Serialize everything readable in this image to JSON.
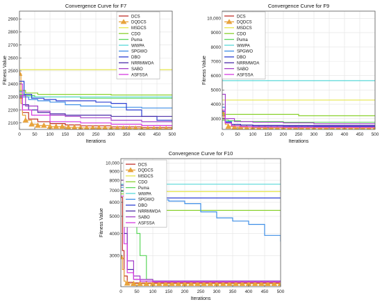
{
  "series_styles": [
    {
      "name": "DCS",
      "color": "#c0302a"
    },
    {
      "name": "DQDCS",
      "color": "#e8a33c",
      "marker": "triangle"
    },
    {
      "name": "MSDCS",
      "color": "#e6e64a"
    },
    {
      "name": "CDO",
      "color": "#8ad12e"
    },
    {
      "name": "Puma",
      "color": "#5ad65a"
    },
    {
      "name": "WWPA",
      "color": "#58d8d8"
    },
    {
      "name": "SPGWO",
      "color": "#3e8ee6"
    },
    {
      "name": "DBO",
      "color": "#2c3fd2"
    },
    {
      "name": "NRRMWOA",
      "color": "#4a2ca8"
    },
    {
      "name": "SABO",
      "color": "#a23cc8"
    },
    {
      "name": "ASFSSA",
      "color": "#d63ce0"
    }
  ],
  "chart_data": [
    {
      "type": "line",
      "title": "Convergence Curve for F7",
      "xlabel": "Iterations",
      "ylabel": "Fitness Value",
      "xlim": [
        0,
        500
      ],
      "ylim": [
        2050,
        2960
      ],
      "xticks": [
        0,
        50,
        100,
        150,
        200,
        250,
        300,
        350,
        400,
        450,
        500
      ],
      "yticks": [
        2100,
        2200,
        2300,
        2400,
        2500,
        2600,
        2700,
        2800,
        2900
      ],
      "ytick_labels": [
        "2100",
        "2200",
        "2300",
        "2400",
        "2500",
        "2600",
        "2700",
        "2800",
        "2900"
      ],
      "legend": "top-right",
      "grid": true,
      "series": [
        {
          "name": "DCS",
          "x": [
            0,
            10,
            30,
            60,
            100,
            150,
            200,
            300,
            400,
            500
          ],
          "y": [
            2290,
            2180,
            2130,
            2110,
            2095,
            2085,
            2078,
            2070,
            2065,
            2062
          ]
        },
        {
          "name": "DQDCS",
          "x": [
            0,
            5,
            10,
            20,
            40,
            60,
            100,
            150,
            200,
            300,
            400,
            500
          ],
          "y": [
            2480,
            2250,
            2160,
            2120,
            2090,
            2080,
            2072,
            2066,
            2062,
            2058,
            2055,
            2053
          ]
        },
        {
          "name": "MSDCS",
          "x": [
            0,
            500
          ],
          "y": [
            2510,
            2510
          ]
        },
        {
          "name": "CDO",
          "x": [
            0,
            20,
            60,
            100,
            150,
            200,
            300,
            500
          ],
          "y": [
            2350,
            2330,
            2320,
            2320,
            2320,
            2320,
            2315,
            2315
          ]
        },
        {
          "name": "Puma",
          "x": [
            0,
            20,
            50,
            100,
            150,
            200,
            500
          ],
          "y": [
            2320,
            2310,
            2300,
            2300,
            2300,
            2290,
            2290
          ]
        },
        {
          "name": "WWPA",
          "x": [
            0,
            500
          ],
          "y": [
            2300,
            2300
          ]
        },
        {
          "name": "SPGWO",
          "x": [
            0,
            10,
            30,
            60,
            100,
            150,
            200,
            300,
            400,
            500
          ],
          "y": [
            2340,
            2300,
            2280,
            2270,
            2260,
            2240,
            2230,
            2220,
            2215,
            2215
          ]
        },
        {
          "name": "DBO",
          "x": [
            0,
            15,
            40,
            80,
            120,
            180,
            250,
            300,
            350,
            400,
            450,
            500
          ],
          "y": [
            2420,
            2320,
            2290,
            2280,
            2270,
            2270,
            2260,
            2250,
            2200,
            2150,
            2120,
            2110
          ]
        },
        {
          "name": "NRRMWOA",
          "x": [
            0,
            10,
            30,
            60,
            100,
            150,
            200,
            300,
            500
          ],
          "y": [
            2300,
            2240,
            2200,
            2180,
            2170,
            2160,
            2160,
            2150,
            2150
          ]
        },
        {
          "name": "SABO",
          "x": [
            0,
            20,
            60,
            100,
            150,
            200,
            300,
            400,
            500
          ],
          "y": [
            2310,
            2230,
            2190,
            2160,
            2150,
            2140,
            2120,
            2110,
            2100
          ]
        },
        {
          "name": "ASFSSA",
          "x": [
            0,
            10,
            40,
            100,
            200,
            300,
            400,
            500
          ],
          "y": [
            2400,
            2200,
            2160,
            2110,
            2100,
            2090,
            2080,
            2075
          ]
        }
      ]
    },
    {
      "type": "line",
      "title": "Convergence Curve for F9",
      "xlabel": "Iterations",
      "ylabel": "Fitness Value",
      "xlim": [
        0,
        500
      ],
      "ylim": [
        2250,
        10500
      ],
      "xticks": [
        0,
        50,
        100,
        150,
        200,
        250,
        300,
        350,
        400,
        450,
        500
      ],
      "yticks": [
        3000,
        4000,
        5000,
        6000,
        7000,
        8000,
        9000,
        10000
      ],
      "ytick_labels": [
        "3000",
        "4000",
        "5000",
        "6000",
        "7000",
        "8000",
        "9000",
        "10,000"
      ],
      "legend": "top-right",
      "grid": true,
      "series": [
        {
          "name": "DCS",
          "x": [
            0,
            10,
            30,
            60,
            100,
            200,
            300,
            400,
            500
          ],
          "y": [
            3200,
            2700,
            2500,
            2450,
            2420,
            2400,
            2400,
            2400,
            2400
          ]
        },
        {
          "name": "DQDCS",
          "x": [
            0,
            5,
            10,
            20,
            40,
            80,
            150,
            250,
            350,
            500
          ],
          "y": [
            3450,
            2900,
            2600,
            2450,
            2400,
            2360,
            2350,
            2350,
            2350,
            2350
          ]
        },
        {
          "name": "MSDCS",
          "x": [
            0,
            500
          ],
          "y": [
            4300,
            4300
          ]
        },
        {
          "name": "CDO",
          "x": [
            0,
            30,
            100,
            200,
            250,
            300,
            500
          ],
          "y": [
            3300,
            3300,
            3300,
            3300,
            3200,
            3200,
            3200
          ]
        },
        {
          "name": "Puma",
          "x": [
            0,
            20,
            60,
            100,
            200,
            500
          ],
          "y": [
            2900,
            2850,
            2800,
            2800,
            2750,
            2750
          ]
        },
        {
          "name": "WWPA",
          "x": [
            0,
            500
          ],
          "y": [
            5650,
            5650
          ]
        },
        {
          "name": "SPGWO",
          "x": [
            0,
            10,
            30,
            60,
            100,
            200,
            300,
            500
          ],
          "y": [
            3800,
            2800,
            2600,
            2550,
            2500,
            2500,
            2480,
            2480
          ]
        },
        {
          "name": "DBO",
          "x": [
            0,
            10,
            30,
            60,
            100,
            200,
            300,
            500
          ],
          "y": [
            3500,
            2750,
            2600,
            2550,
            2500,
            2480,
            2470,
            2470
          ]
        },
        {
          "name": "NRRMWOA",
          "x": [
            0,
            10,
            30,
            60,
            100,
            200,
            300,
            500
          ],
          "y": [
            3000,
            2700,
            2600,
            2550,
            2530,
            2520,
            2520,
            2520
          ]
        },
        {
          "name": "SABO",
          "x": [
            0,
            10,
            40,
            100,
            200,
            300,
            500
          ],
          "y": [
            4700,
            3000,
            2800,
            2750,
            2700,
            2650,
            2650
          ]
        },
        {
          "name": "ASFSSA",
          "x": [
            0,
            10,
            30,
            60,
            100,
            200,
            300,
            500
          ],
          "y": [
            3600,
            2700,
            2500,
            2450,
            2420,
            2400,
            2400,
            2400
          ]
        }
      ]
    },
    {
      "type": "line",
      "title": "Convergence Curve for F10",
      "xlabel": "Iterations",
      "ylabel": "Fitness Value",
      "xlim": [
        0,
        500
      ],
      "ylim": [
        2000,
        10600
      ],
      "yscale": "log",
      "xticks": [
        0,
        50,
        100,
        150,
        200,
        250,
        300,
        350,
        400,
        450,
        500
      ],
      "yticks": [
        3000,
        4000,
        5000,
        6000,
        7000,
        8000,
        9000,
        10000
      ],
      "ytick_labels": [
        "3000",
        "4000",
        "5000",
        "6000",
        "7000",
        "8000",
        "9000",
        "10,000"
      ],
      "legend": "top-right",
      "grid": true,
      "series": [
        {
          "name": "DCS",
          "x": [
            0,
            5,
            10,
            20,
            40,
            100,
            200,
            300,
            400,
            500
          ],
          "y": [
            6400,
            3200,
            2300,
            2120,
            2100,
            2100,
            2100,
            2100,
            2100,
            2100
          ]
        },
        {
          "name": "DQDCS",
          "x": [
            0,
            5,
            10,
            15,
            25,
            50,
            100,
            200,
            300,
            500
          ],
          "y": [
            2950,
            2500,
            2150,
            2090,
            2080,
            2080,
            2080,
            2080,
            2080,
            2080
          ]
        },
        {
          "name": "MSDCS",
          "x": [
            0,
            40,
            100,
            200,
            500
          ],
          "y": [
            7000,
            6900,
            6900,
            6900,
            6900
          ]
        },
        {
          "name": "CDO",
          "x": [
            0,
            20,
            40,
            60,
            80,
            100,
            200,
            500
          ],
          "y": [
            6700,
            6600,
            5500,
            5400,
            5400,
            5400,
            5400,
            5400
          ]
        },
        {
          "name": "Puma",
          "x": [
            0,
            20,
            40,
            50,
            60,
            80,
            100,
            150,
            200,
            500
          ],
          "y": [
            6900,
            6800,
            5500,
            4000,
            3000,
            2200,
            2150,
            2150,
            2150,
            2150
          ]
        },
        {
          "name": "WWPA",
          "x": [
            0,
            500
          ],
          "y": [
            7600,
            7600
          ]
        },
        {
          "name": "SPGWO",
          "x": [
            0,
            20,
            50,
            100,
            150,
            200,
            250,
            300,
            350,
            400,
            450,
            500
          ],
          "y": [
            7300,
            6800,
            6400,
            6200,
            6100,
            5900,
            5300,
            4900,
            4700,
            4500,
            3900,
            3600
          ]
        },
        {
          "name": "DBO",
          "x": [
            0,
            10,
            30,
            60,
            100,
            200,
            500
          ],
          "y": [
            7000,
            6600,
            6400,
            6350,
            6350,
            6350,
            6350
          ]
        },
        {
          "name": "NRRMWOA",
          "x": [
            0,
            10,
            20,
            40,
            60,
            100,
            200,
            500
          ],
          "y": [
            7500,
            4000,
            2500,
            2200,
            2150,
            2150,
            2150,
            2150
          ]
        },
        {
          "name": "SABO",
          "x": [
            0,
            10,
            20,
            40,
            60,
            100,
            200,
            500
          ],
          "y": [
            8000,
            5000,
            2800,
            2300,
            2200,
            2150,
            2150,
            2150
          ]
        },
        {
          "name": "ASFSSA",
          "x": [
            0,
            10,
            20,
            40,
            60,
            100,
            200,
            500
          ],
          "y": [
            6500,
            3500,
            2400,
            2200,
            2150,
            2130,
            2130,
            2130
          ]
        }
      ]
    }
  ]
}
